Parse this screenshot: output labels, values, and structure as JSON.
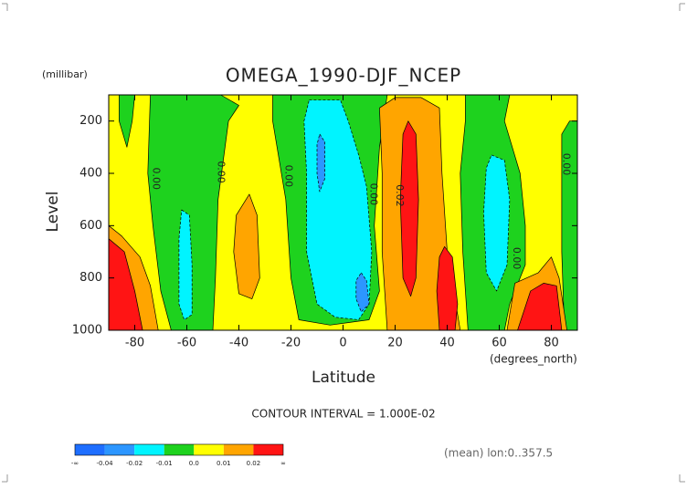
{
  "chart_data": {
    "type": "contour",
    "title": "OMEGA_1990-DJF_NCEP",
    "y_unit": "(millibar)",
    "ylabel": "Level",
    "xlabel": "Latitude",
    "x_unit": "(degrees_north)",
    "xlim": [
      -90,
      90
    ],
    "xticks": [
      -80,
      -60,
      -40,
      -20,
      0,
      20,
      40,
      60,
      80
    ],
    "ylim": [
      1000,
      100
    ],
    "yticks": [
      200,
      400,
      600,
      800,
      1000
    ],
    "contour_labels": [
      "0.00",
      "0.00",
      "0.00",
      "0.00",
      "0.02",
      "0.00",
      "0.00"
    ],
    "note": "CONTOUR INTERVAL = 1.000E-02",
    "footer": "(mean) lon:0..357.5",
    "colorbar": {
      "labels": [
        "-∞",
        "-0.04",
        "-0.02",
        "-0.01",
        "0.0",
        "0.01",
        "0.02",
        "∞"
      ],
      "colors": [
        "#1e6eff",
        "#2c96ff",
        "#00f4ff",
        "#1ed21e",
        "#ffff00",
        "#ffa500",
        "#ff1414"
      ]
    }
  }
}
